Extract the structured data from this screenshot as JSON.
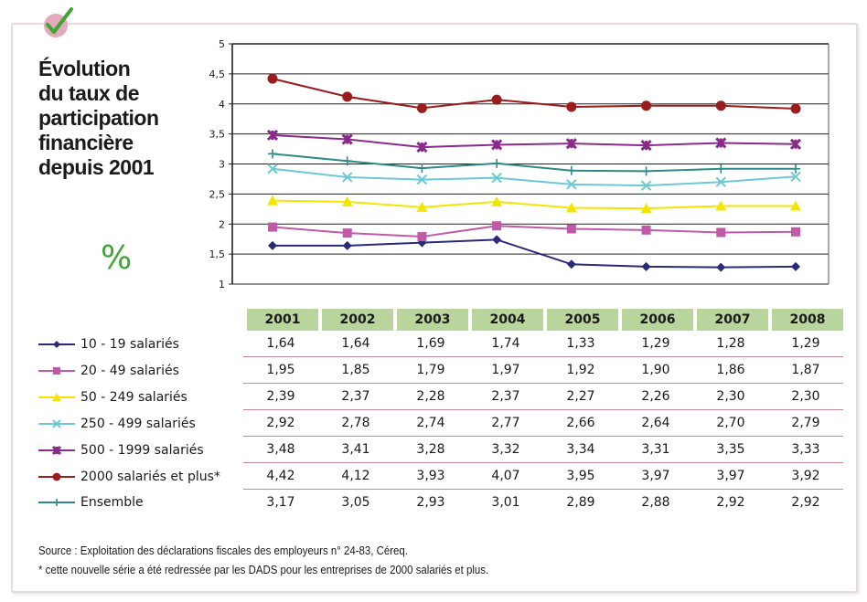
{
  "title_lines": [
    "Évolution",
    "du taux de",
    "participation",
    "financière",
    "depuis 2001"
  ],
  "unit": "%",
  "icon": "check-icon",
  "colors": {
    "header_bg": "#b9d49d",
    "unit_color": "#3fa535",
    "row_divider": "#c9879d"
  },
  "chart_data": {
    "type": "line",
    "title": "Évolution du taux de participation financière depuis 2001",
    "xlabel": "",
    "ylabel": "%",
    "x": [
      "2001",
      "2002",
      "2003",
      "2004",
      "2005",
      "2006",
      "2007",
      "2008"
    ],
    "ylim": [
      1,
      5
    ],
    "yticks": [
      "1",
      "1,5",
      "2",
      "2,5",
      "3",
      "3,5",
      "4",
      "4,5",
      "5"
    ],
    "grid": true,
    "legend_position": "bottom-left (table rows)",
    "series": [
      {
        "name": "10 - 19 salariés",
        "color": "#2b2a78",
        "marker": "diamond",
        "values": [
          1.64,
          1.64,
          1.69,
          1.74,
          1.33,
          1.29,
          1.28,
          1.29
        ],
        "labels": [
          "1,64",
          "1,64",
          "1,69",
          "1,74",
          "1,33",
          "1,29",
          "1,28",
          "1,29"
        ]
      },
      {
        "name": "20 - 49 salariés",
        "color": "#c05aa6",
        "marker": "square",
        "values": [
          1.95,
          1.85,
          1.79,
          1.97,
          1.92,
          1.9,
          1.86,
          1.87
        ],
        "labels": [
          "1,95",
          "1,85",
          "1,79",
          "1,97",
          "1,92",
          "1,90",
          "1,86",
          "1,87"
        ]
      },
      {
        "name": "50 - 249 salariés",
        "color": "#f2e600",
        "marker": "triangle",
        "values": [
          2.39,
          2.37,
          2.28,
          2.37,
          2.27,
          2.26,
          2.3,
          2.3
        ],
        "labels": [
          "2,39",
          "2,37",
          "2,28",
          "2,37",
          "2,27",
          "2,26",
          "2,30",
          "2,30"
        ]
      },
      {
        "name": "250 - 499 salariés",
        "color": "#6cc9d3",
        "marker": "x",
        "values": [
          2.92,
          2.78,
          2.74,
          2.77,
          2.66,
          2.64,
          2.7,
          2.79
        ],
        "labels": [
          "2,92",
          "2,78",
          "2,74",
          "2,77",
          "2,66",
          "2,64",
          "2,70",
          "2,79"
        ]
      },
      {
        "name": "500 - 1999 salariés",
        "color": "#8a2a8c",
        "marker": "star",
        "values": [
          3.48,
          3.41,
          3.28,
          3.32,
          3.34,
          3.31,
          3.35,
          3.33
        ],
        "labels": [
          "3,48",
          "3,41",
          "3,28",
          "3,32",
          "3,34",
          "3,31",
          "3,35",
          "3,33"
        ]
      },
      {
        "name": "2000 salariés et plus*",
        "color": "#9b1c1c",
        "marker": "circle",
        "values": [
          4.42,
          4.12,
          3.93,
          4.07,
          3.95,
          3.97,
          3.97,
          3.92
        ],
        "labels": [
          "4,42",
          "4,12",
          "3,93",
          "4,07",
          "3,95",
          "3,97",
          "3,97",
          "3,92"
        ]
      },
      {
        "name": "Ensemble",
        "color": "#2e8a88",
        "marker": "plus",
        "values": [
          3.17,
          3.05,
          2.93,
          3.01,
          2.89,
          2.88,
          2.92,
          2.92
        ],
        "labels": [
          "3,17",
          "3,05",
          "2,93",
          "3,01",
          "2,89",
          "2,88",
          "2,92",
          "2,92"
        ]
      }
    ]
  },
  "footnotes": {
    "source": "Source : Exploitation des déclarations fiscales des employeurs n° 24-83, Céreq.",
    "note": "* cette nouvelle série a été redressée par les DADS pour les entreprises de 2000 salariés et plus."
  }
}
